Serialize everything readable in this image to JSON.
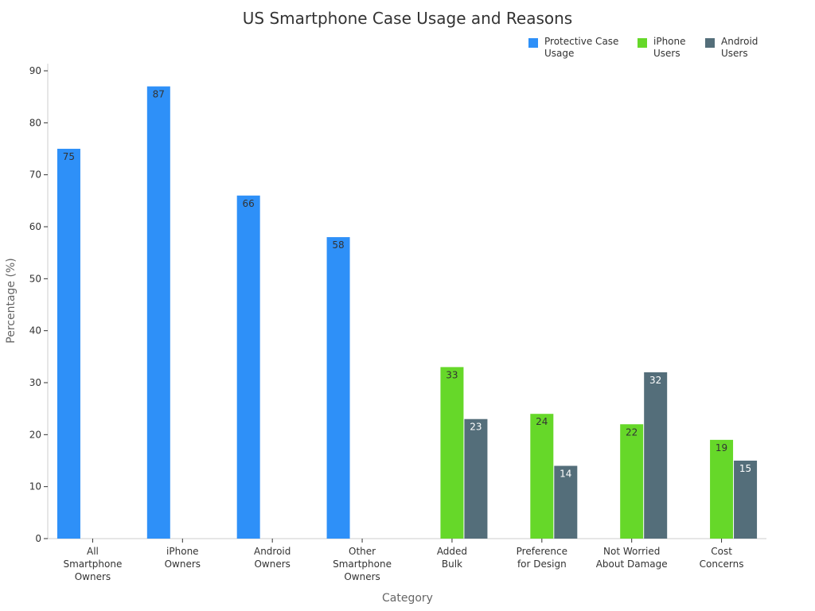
{
  "chart_data": {
    "type": "bar",
    "title": "US Smartphone Case Usage and Reasons",
    "xlabel": "Category",
    "ylabel": "Percentage (%)",
    "ylim": [
      0,
      90
    ],
    "yticks": [
      0,
      10,
      20,
      30,
      40,
      50,
      60,
      70,
      80,
      90
    ],
    "grid": false,
    "legend_position": "top-right",
    "categories": [
      [
        "All",
        "Smartphone",
        "Owners"
      ],
      [
        "iPhone",
        "Owners"
      ],
      [
        "Android",
        "Owners"
      ],
      [
        "Other",
        "Smartphone",
        "Owners"
      ],
      [
        "Added",
        "Bulk"
      ],
      [
        "Preference",
        "for Design"
      ],
      [
        "Not Worried",
        "About Damage"
      ],
      [
        "Cost",
        "Concerns"
      ]
    ],
    "series": [
      {
        "name": [
          "Protective Case",
          "Usage"
        ],
        "color": "#2E90F8",
        "label_color": "#333333",
        "values": [
          75,
          87,
          66,
          58,
          null,
          null,
          null,
          null
        ]
      },
      {
        "name": [
          "iPhone",
          "Users"
        ],
        "color": "#66D829",
        "label_color": "#333333",
        "values": [
          null,
          null,
          null,
          null,
          33,
          24,
          22,
          19
        ]
      },
      {
        "name": [
          "Android",
          "Users"
        ],
        "color": "#546E7A",
        "label_color": "#ffffff",
        "values": [
          null,
          null,
          null,
          null,
          23,
          14,
          32,
          15
        ]
      }
    ]
  }
}
